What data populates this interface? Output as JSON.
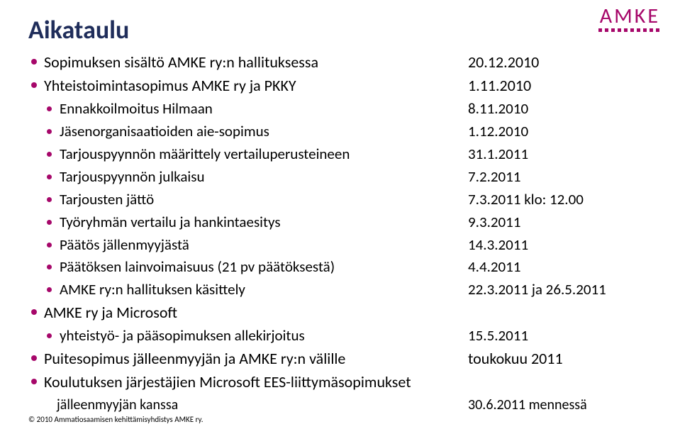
{
  "logo": {
    "text": "AMKE"
  },
  "title": "Aikataulu",
  "colors": {
    "accent": "#a6076a",
    "title": "#1f2d5a",
    "text": "#000000",
    "background": "#ffffff"
  },
  "items": [
    {
      "level": 1,
      "label": "Sopimuksen sisältö AMKE ry:n hallituksessa",
      "date": "20.12.2010"
    },
    {
      "level": 1,
      "label": "Yhteistoimintasopimus AMKE ry ja PKKY",
      "date": "1.11.2010"
    },
    {
      "level": 2,
      "label": "Ennakkoilmoitus Hilmaan",
      "date": "8.11.2010"
    },
    {
      "level": 2,
      "label": "Jäsenorganisaatioiden aie-sopimus",
      "date": "1.12.2010"
    },
    {
      "level": 2,
      "label": "Tarjouspyynnön määrittely vertailuperusteineen",
      "date": "31.1.2011"
    },
    {
      "level": 2,
      "label": "Tarjouspyynnön julkaisu",
      "date": "7.2.2011"
    },
    {
      "level": 2,
      "label": "Tarjousten jättö",
      "date": "7.3.2011 klo: 12.00"
    },
    {
      "level": 2,
      "label": "Työryhmän vertailu ja hankintaesitys",
      "date": "9.3.2011"
    },
    {
      "level": 2,
      "label": "Päätös jällenmyyjästä",
      "date": "14.3.2011"
    },
    {
      "level": 2,
      "label": "Päätöksen lainvoimaisuus (21 pv päätöksestä)",
      "date": "4.4.2011"
    },
    {
      "level": 2,
      "label": "AMKE ry:n hallituksen käsittely",
      "date": "22.3.2011 ja 26.5.2011"
    },
    {
      "level": 1,
      "label": "AMKE ry ja Microsoft",
      "date": ""
    },
    {
      "level": 2,
      "label": "yhteistyö- ja pääsopimuksen allekirjoitus",
      "date": "15.5.2011"
    },
    {
      "level": 1,
      "label": "Puitesopimus jälleenmyyjän ja AMKE ry:n välille",
      "date": "toukokuu 2011"
    },
    {
      "level": 1,
      "label": "Koulutuksen järjestäjien Microsoft EES-liittymäsopimukset",
      "date": ""
    },
    {
      "level": 3,
      "label": "jälleenmyyjän kanssa",
      "date": "30.6.2011 mennessä",
      "nobullet": true
    }
  ],
  "footer": "© 2010 Ammatiosaamisen kehittämisyhdistys AMKE ry."
}
